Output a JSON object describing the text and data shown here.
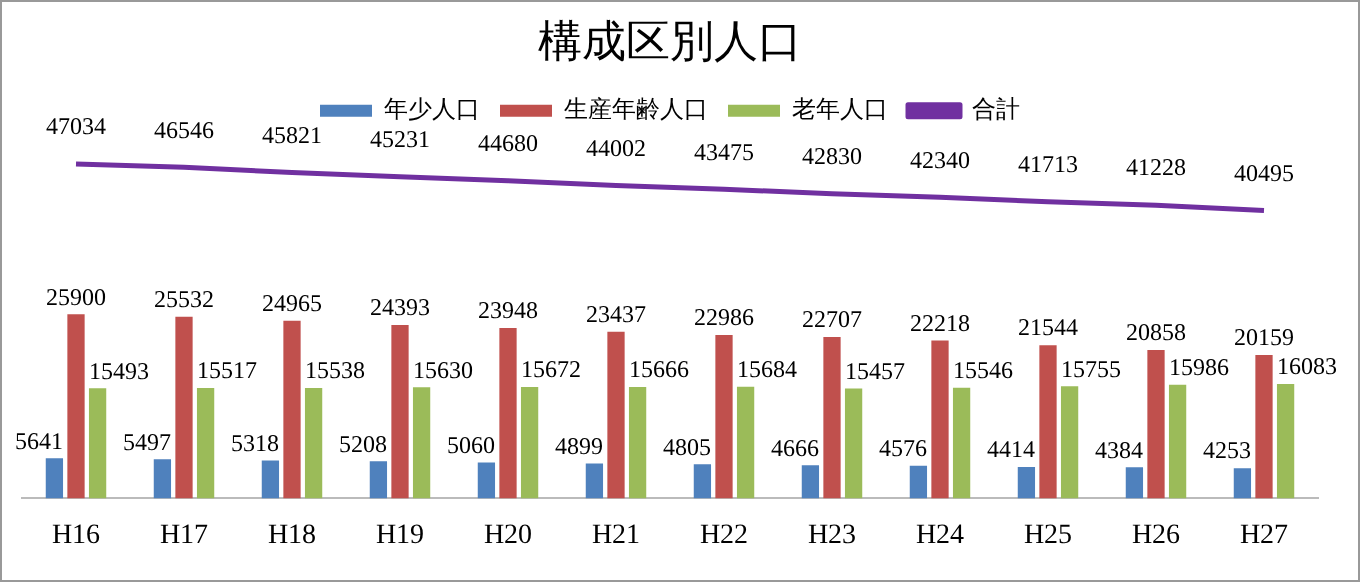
{
  "chart_data": {
    "type": "bar",
    "title": "構成区別人口",
    "categories": [
      "H16",
      "H17",
      "H18",
      "H19",
      "H20",
      "H21",
      "H22",
      "H23",
      "H24",
      "H25",
      "H26",
      "H27"
    ],
    "series": [
      {
        "name": "年少人口",
        "color": "#4f81bd",
        "values": [
          5641,
          5497,
          5318,
          5208,
          5060,
          4899,
          4805,
          4666,
          4576,
          4414,
          4384,
          4253
        ]
      },
      {
        "name": "生産年齢人口",
        "color": "#c0504d",
        "values": [
          25900,
          25532,
          24965,
          24393,
          23948,
          23437,
          22986,
          22707,
          22218,
          21544,
          20858,
          20159
        ]
      },
      {
        "name": "老年人口",
        "color": "#9bbb59",
        "values": [
          15493,
          15517,
          15538,
          15630,
          15672,
          15666,
          15684,
          15457,
          15546,
          15755,
          15986,
          16083
        ]
      },
      {
        "name": "合計",
        "type": "line",
        "color": "#7030a0",
        "values": [
          47034,
          46546,
          45821,
          45231,
          44680,
          44002,
          43475,
          42830,
          42340,
          41713,
          41228,
          40495
        ]
      }
    ],
    "data_labels": true,
    "legend": "top",
    "grid": false,
    "tick_labels": "x",
    "marker": "none"
  }
}
